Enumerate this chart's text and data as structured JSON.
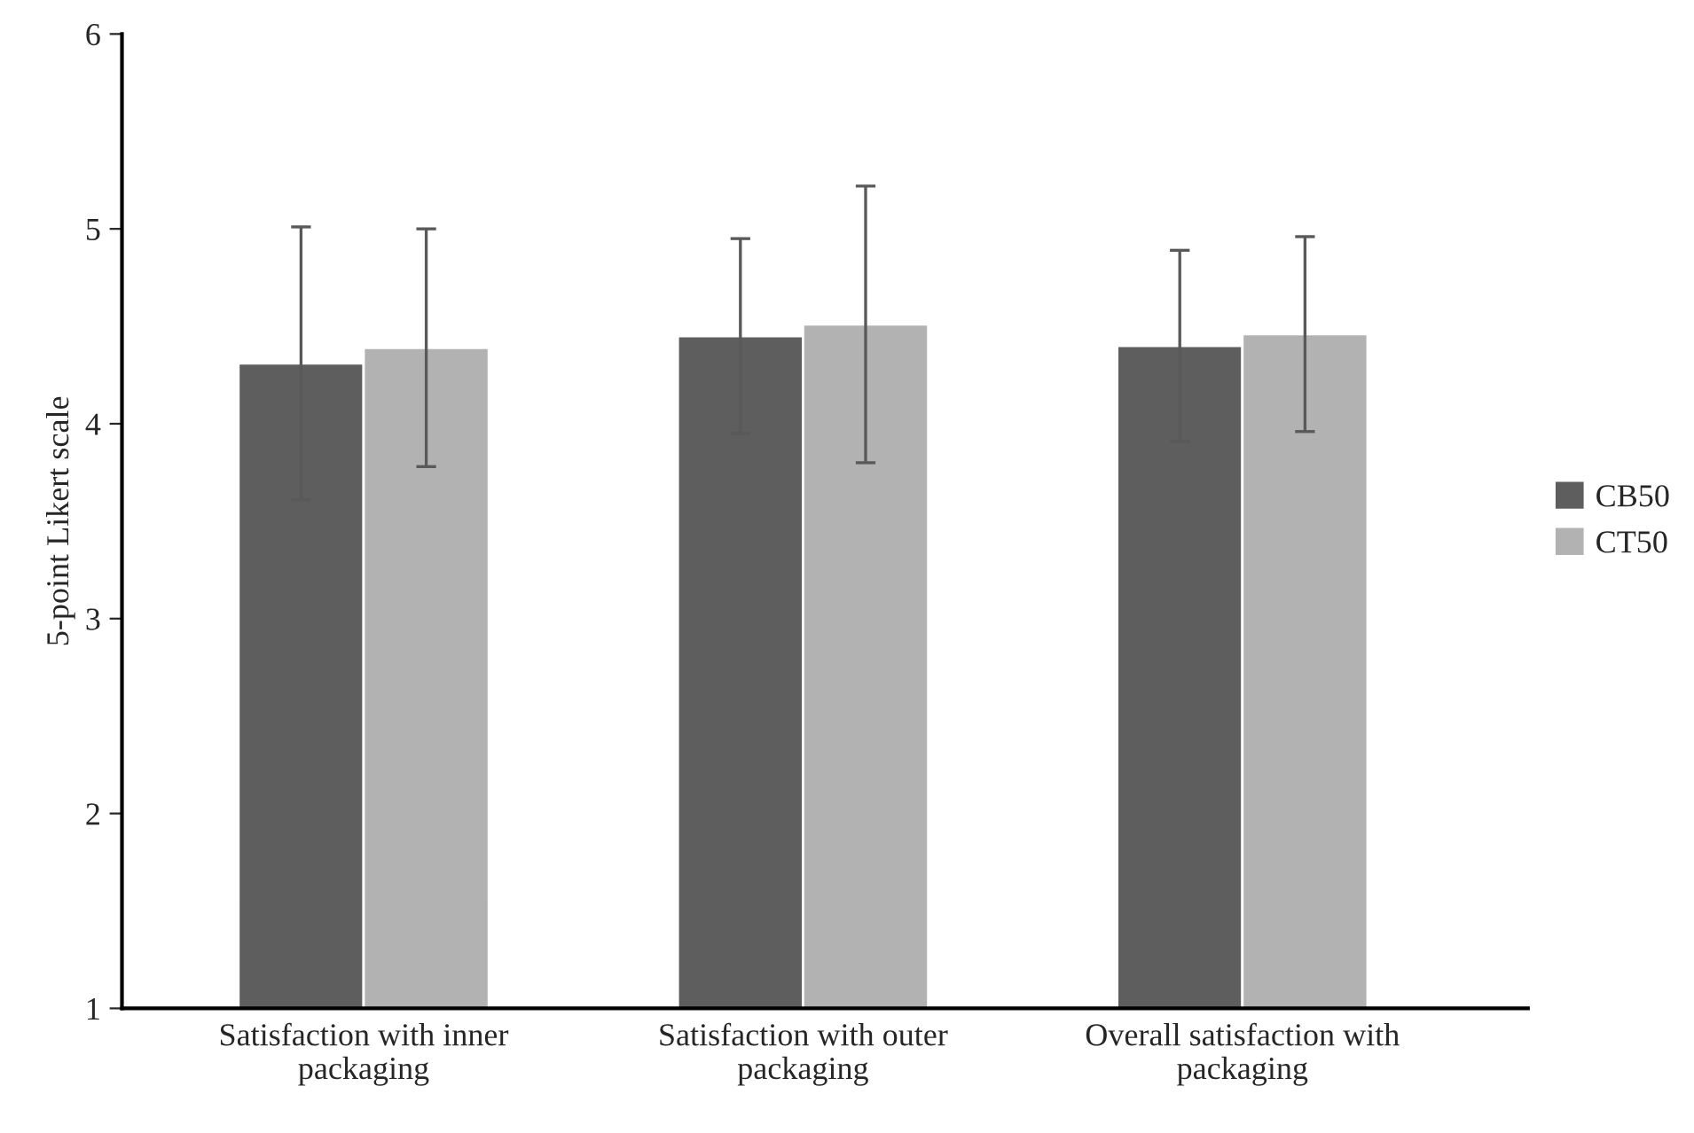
{
  "chart_data": {
    "type": "bar",
    "ylabel": "5-point Likert scale",
    "categories": [
      "Satisfaction with inner packaging",
      "Satisfaction with outer packaging",
      "Overall satisfaction with packaging"
    ],
    "series": [
      {
        "name": "CB50",
        "color": "#5e5e5e",
        "values": [
          4.31,
          4.45,
          4.4
        ],
        "errors": [
          0.7,
          0.5,
          0.49
        ]
      },
      {
        "name": "CT50",
        "color": "#b2b2b2",
        "values": [
          4.39,
          4.51,
          4.46
        ],
        "errors": [
          0.61,
          0.71,
          0.5
        ]
      }
    ],
    "ylim": [
      1,
      6
    ],
    "yticks": [
      1,
      2,
      3,
      4,
      5,
      6
    ],
    "grid": false,
    "legend": "right"
  }
}
